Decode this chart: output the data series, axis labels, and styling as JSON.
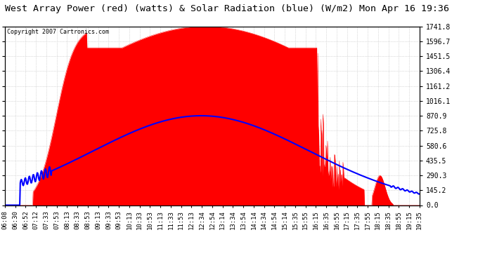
{
  "title": "West Array Power (red) (watts) & Solar Radiation (blue) (W/m2) Mon Apr 16 19:36",
  "copyright": "Copyright 2007 Cartronics.com",
  "y_max": 1741.8,
  "y_ticks": [
    0.0,
    145.2,
    290.3,
    435.5,
    580.6,
    725.8,
    870.9,
    1016.1,
    1161.2,
    1306.4,
    1451.5,
    1596.7,
    1741.8
  ],
  "x_labels": [
    "06:08",
    "06:30",
    "06:52",
    "07:12",
    "07:33",
    "07:53",
    "08:13",
    "08:33",
    "08:53",
    "09:13",
    "09:33",
    "09:53",
    "10:13",
    "10:33",
    "10:53",
    "11:13",
    "11:33",
    "11:53",
    "12:13",
    "12:34",
    "12:54",
    "13:14",
    "13:34",
    "13:54",
    "14:14",
    "14:34",
    "14:54",
    "15:14",
    "15:35",
    "15:55",
    "16:15",
    "16:35",
    "16:55",
    "17:15",
    "17:35",
    "17:55",
    "18:15",
    "18:35",
    "18:55",
    "19:15",
    "19:35"
  ],
  "background_color": "#ffffff",
  "plot_bg_color": "#ffffff",
  "grid_color": "#bbbbbb",
  "red_color": "#ff0000",
  "blue_color": "#0000ff",
  "title_fontsize": 9.5,
  "tick_fontsize": 6.5,
  "copyright_fontsize": 6.0
}
